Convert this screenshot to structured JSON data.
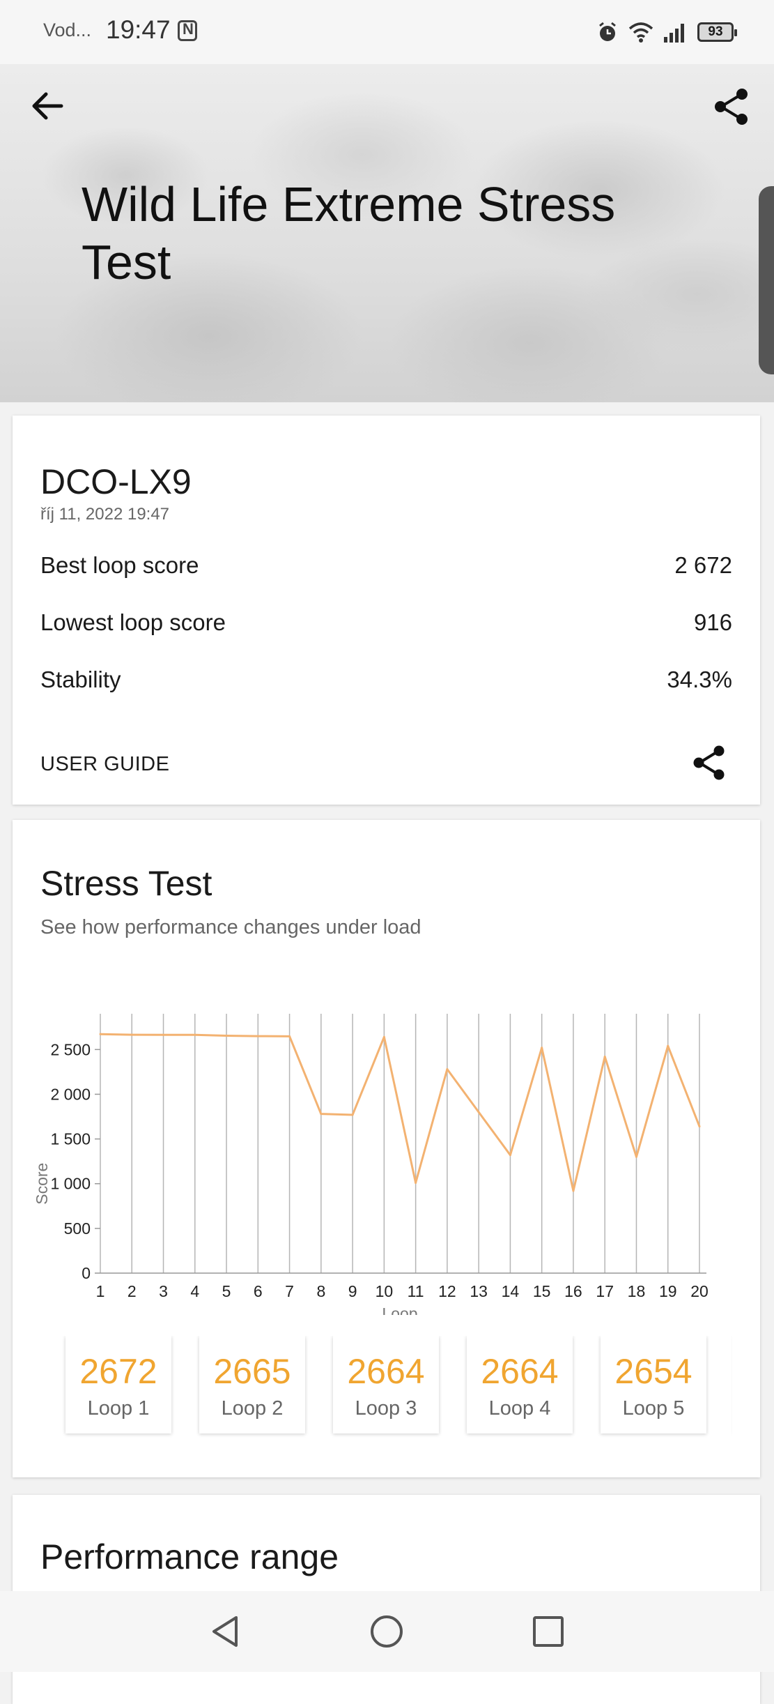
{
  "status_bar": {
    "carrier": "Vod...",
    "time": "19:47",
    "battery": "93"
  },
  "header": {
    "title": "Wild Life Extreme Stress Test"
  },
  "summary": {
    "device": "DCO-LX9",
    "date": "říj 11, 2022 19:47",
    "rows": [
      {
        "label": "Best loop score",
        "value": "2 672"
      },
      {
        "label": "Lowest loop score",
        "value": "916"
      },
      {
        "label": "Stability",
        "value": "34.3%"
      }
    ],
    "user_guide": "USER GUIDE"
  },
  "stress_test": {
    "title": "Stress Test",
    "subtitle": "See how performance changes under load",
    "loops": [
      {
        "score": "2672",
        "label": "Loop 1"
      },
      {
        "score": "2665",
        "label": "Loop 2"
      },
      {
        "score": "2664",
        "label": "Loop 3"
      },
      {
        "score": "2664",
        "label": "Loop 4"
      },
      {
        "score": "2654",
        "label": "Loop 5"
      }
    ]
  },
  "performance_range": {
    "title": "Performance range"
  },
  "chart_data": {
    "type": "line",
    "xlabel": "Loop",
    "ylabel": "Score",
    "x": [
      1,
      2,
      3,
      4,
      5,
      6,
      7,
      8,
      9,
      10,
      11,
      12,
      13,
      14,
      15,
      16,
      17,
      18,
      19,
      20
    ],
    "series": [
      {
        "values": [
          2672,
          2665,
          2664,
          2664,
          2654,
          2650,
          2648,
          1780,
          1770,
          2640,
          1010,
          2280,
          1800,
          1320,
          2520,
          920,
          2420,
          1300,
          2540,
          1640
        ]
      }
    ],
    "yticks": [
      "0",
      "500",
      "1 000",
      "1 500",
      "2 000",
      "2 500"
    ],
    "xticks": [
      "1",
      "2",
      "3",
      "4",
      "5",
      "6",
      "7",
      "8",
      "9",
      "10",
      "11",
      "12",
      "13",
      "14",
      "15",
      "16",
      "17",
      "18",
      "19",
      "20"
    ],
    "ylim": [
      0,
      2900
    ],
    "grid": "vertical",
    "color": "#f3b271"
  },
  "colors": {
    "accent": "#f0a530",
    "line": "#f3b271"
  }
}
